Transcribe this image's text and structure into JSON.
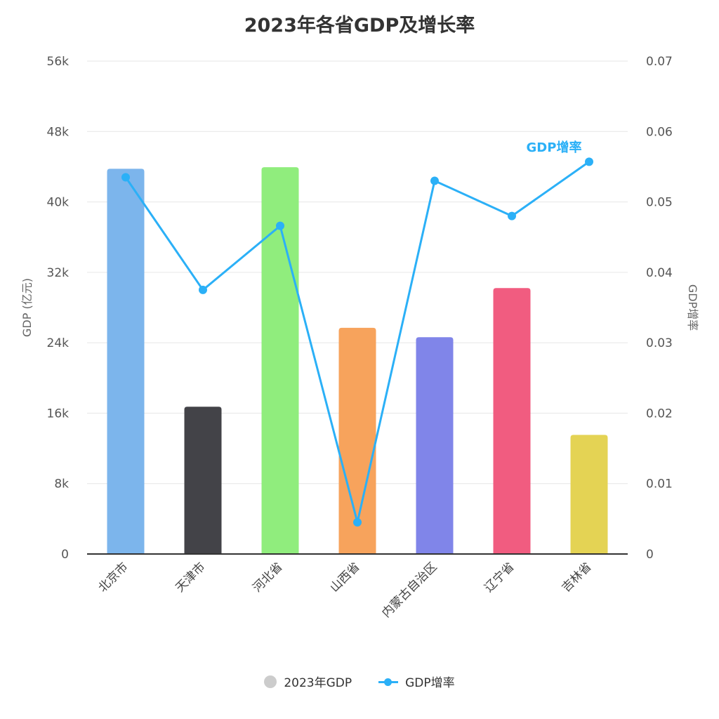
{
  "title": "2023年各省GDP及增长率",
  "legend": {
    "bar_label": "2023年GDP",
    "line_label": "GDP增率"
  },
  "axes": {
    "left_title": "GDP (亿元)",
    "right_title": "GDP增率",
    "left_ticks": [
      "0",
      "8k",
      "16k",
      "24k",
      "32k",
      "40k",
      "48k",
      "56k"
    ],
    "right_ticks": [
      "0",
      "0.01",
      "0.02",
      "0.03",
      "0.04",
      "0.05",
      "0.06",
      "0.07"
    ]
  },
  "series_label": "GDP增率",
  "chart_data": {
    "type": "bar",
    "title": "2023年各省GDP及增长率",
    "categories": [
      "北京市",
      "天津市",
      "河北省",
      "山西省",
      "内蒙古自治区",
      "辽宁省",
      "吉林省"
    ],
    "series": [
      {
        "name": "2023年GDP",
        "type": "bar",
        "axis": "left",
        "values": [
          43761,
          16737,
          43944,
          25698,
          24627,
          30209,
          13531
        ],
        "colors": [
          "#7cb5ec",
          "#434348",
          "#90ed7d",
          "#f7a35c",
          "#8085e9",
          "#f15c80",
          "#e4d354"
        ]
      },
      {
        "name": "GDP增率",
        "type": "line",
        "axis": "right",
        "values": [
          0.0535,
          0.0375,
          0.0466,
          0.0045,
          0.053,
          0.048,
          0.0557
        ],
        "color": "#2bb0f7"
      }
    ],
    "xlabel": "",
    "ylabel": "GDP (亿元)",
    "y2label": "GDP增率",
    "ylim": [
      0,
      56000
    ],
    "y2lim": [
      0,
      0.07
    ],
    "grid": true,
    "legend_position": "bottom",
    "annotations": [
      {
        "text": "GDP增率",
        "near": "吉林省",
        "series": "GDP增率"
      }
    ]
  }
}
